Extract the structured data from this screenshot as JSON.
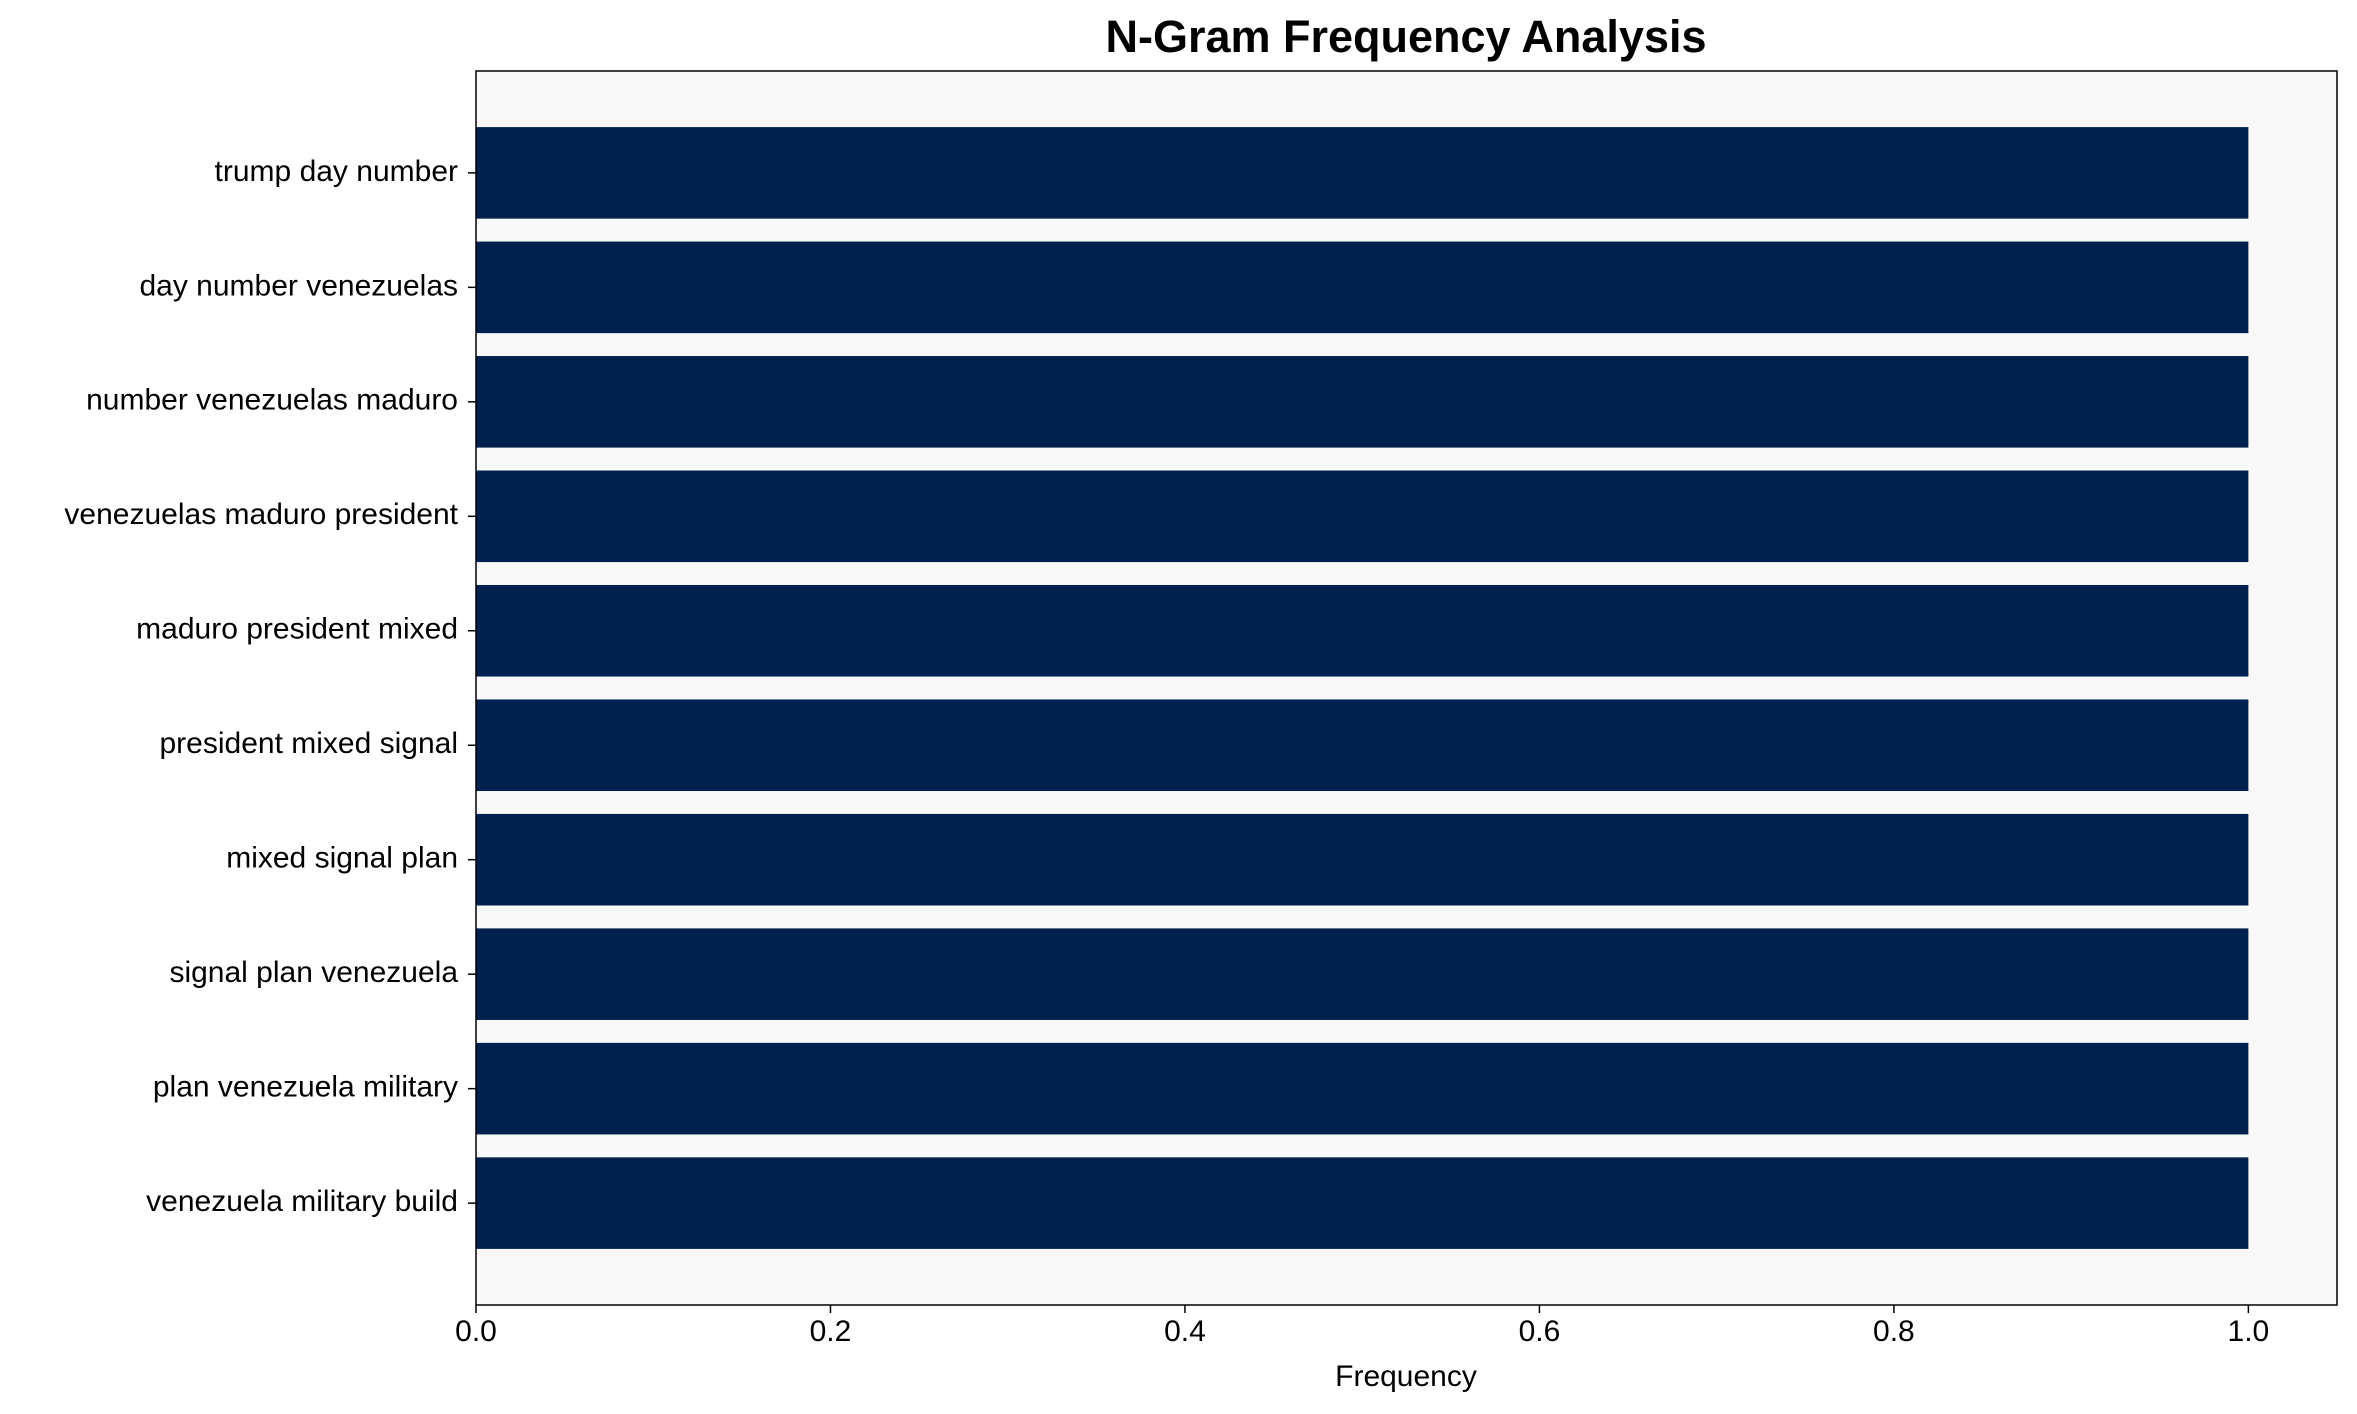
{
  "chart_data": {
    "type": "barh",
    "title": "N-Gram Frequency Analysis",
    "x_label": "Frequency",
    "categories": [
      "trump day number",
      "day number venezuelas",
      "number venezuelas maduro",
      "venezuelas maduro president",
      "maduro president mixed",
      "president mixed signal",
      "mixed signal plan",
      "signal plan venezuela",
      "plan venezuela military",
      "venezuela military build"
    ],
    "values": [
      1,
      1,
      1,
      1,
      1,
      1,
      1,
      1,
      1,
      1
    ],
    "color": "#00214d",
    "xlim": [
      0,
      1.05
    ],
    "xticks": [
      {
        "value": 0,
        "label": "0.0"
      },
      0.2,
      0.4,
      0.6,
      0.8,
      {
        "value": 1,
        "label": "1.0"
      }
    ],
    "grid": false
  }
}
